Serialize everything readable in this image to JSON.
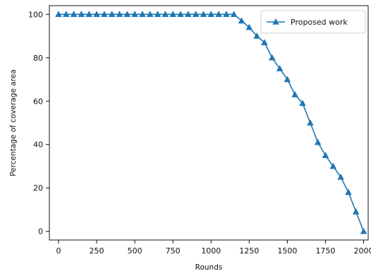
{
  "chart_data": {
    "type": "line",
    "xlabel": "Rounds",
    "ylabel": "Percentage of coverage area",
    "xlim": [
      -60,
      2030
    ],
    "ylim": [
      -4,
      104
    ],
    "xticks": [
      0,
      250,
      500,
      750,
      1000,
      1250,
      1500,
      1750,
      2000
    ],
    "xtick_labels": [
      "0",
      "250",
      "500",
      "750",
      "1000",
      "1250",
      "1500",
      "1750",
      "2000"
    ],
    "yticks": [
      0,
      20,
      40,
      60,
      80,
      100
    ],
    "ytick_labels": [
      "0",
      "20",
      "40",
      "60",
      "80",
      "100"
    ],
    "grid": false,
    "legend_position": "top-right",
    "series": [
      {
        "name": "Proposed work",
        "color": "#1f77b4",
        "marker": "triangle-up",
        "x": [
          0,
          50,
          100,
          150,
          200,
          250,
          300,
          350,
          400,
          450,
          500,
          550,
          600,
          650,
          700,
          750,
          800,
          850,
          900,
          950,
          1000,
          1050,
          1100,
          1150,
          1200,
          1250,
          1300,
          1350,
          1400,
          1450,
          1500,
          1550,
          1600,
          1650,
          1700,
          1750,
          1800,
          1850,
          1900,
          1950,
          2000
        ],
        "y": [
          100,
          100,
          100,
          100,
          100,
          100,
          100,
          100,
          100,
          100,
          100,
          100,
          100,
          100,
          100,
          100,
          100,
          100,
          100,
          100,
          100,
          100,
          100,
          100,
          97,
          94,
          90,
          87,
          80,
          75,
          70,
          63,
          59,
          50,
          41,
          35,
          30,
          25,
          18,
          9,
          0
        ]
      }
    ]
  }
}
